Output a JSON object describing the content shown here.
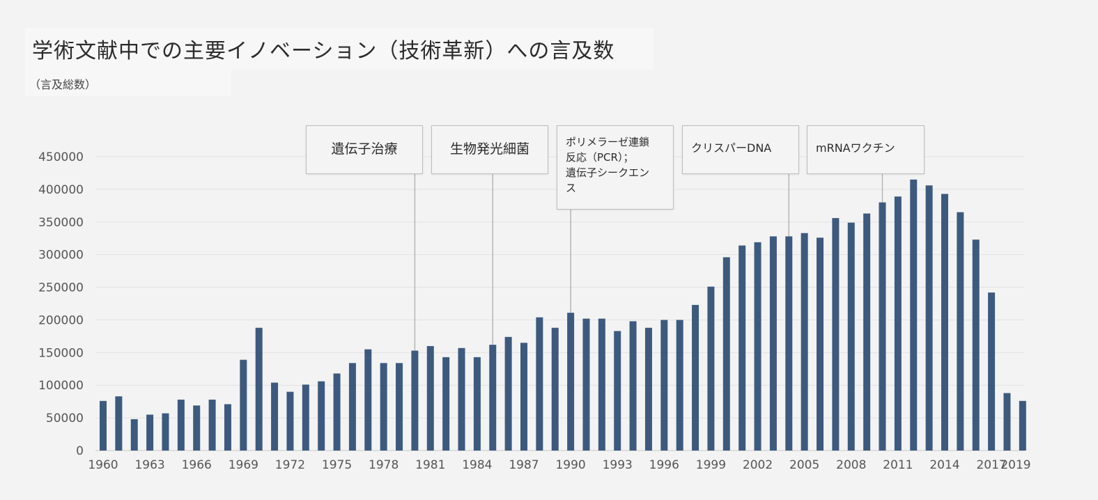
{
  "title": "学術文献中での主要イノベーション（技術革新）への言及数",
  "subtitle": "（言及総数）",
  "chart_data": {
    "type": "bar",
    "title": "学術文献中での主要イノベーション（技術革新）への言及数",
    "ylabel": "（言及総数）",
    "xlabel": "",
    "ylim": [
      0,
      450000
    ],
    "yticks": [
      "0",
      "50000",
      "100000",
      "150000",
      "200000",
      "250000",
      "300000",
      "350000",
      "400000",
      "450000"
    ],
    "xtick_labels": [
      "1960",
      "1963",
      "1966",
      "1969",
      "1972",
      "1975",
      "1978",
      "1981",
      "1984",
      "1987",
      "1990",
      "1993",
      "1996",
      "1999",
      "2002",
      "2005",
      "2008",
      "2011",
      "2014",
      "2017",
      "2019"
    ],
    "grid": true,
    "bar_color": "#3d5a7e",
    "categories": [
      1960,
      1961,
      1962,
      1963,
      1964,
      1965,
      1966,
      1967,
      1968,
      1969,
      1970,
      1971,
      1972,
      1973,
      1974,
      1975,
      1976,
      1977,
      1978,
      1979,
      1980,
      1981,
      1982,
      1983,
      1984,
      1985,
      1986,
      1987,
      1988,
      1989,
      1990,
      1991,
      1992,
      1993,
      1994,
      1995,
      1996,
      1997,
      1998,
      1999,
      2000,
      2001,
      2002,
      2003,
      2004,
      2005,
      2006,
      2007,
      2008,
      2009,
      2010,
      2011,
      2012,
      2013,
      2014,
      2015,
      2016,
      2017,
      2018,
      2019
    ],
    "values": [
      76000,
      83000,
      48000,
      55000,
      57000,
      78000,
      69000,
      78000,
      71000,
      139000,
      188000,
      104000,
      90000,
      101000,
      106000,
      118000,
      134000,
      155000,
      134000,
      134000,
      153000,
      160000,
      143000,
      157000,
      143000,
      162000,
      174000,
      165000,
      204000,
      188000,
      211000,
      202000,
      202000,
      183000,
      198000,
      188000,
      200000,
      200000,
      223000,
      251000,
      296000,
      314000,
      319000,
      328000,
      328000,
      333000,
      326000,
      356000,
      349000,
      363000,
      380000,
      389000,
      415000,
      406000,
      393000,
      365000,
      323000,
      242000,
      88000,
      76000
    ],
    "annotations": [
      {
        "label": "遺伝子治療",
        "year": 1980
      },
      {
        "label": "生物発光細菌",
        "year": 1985
      },
      {
        "label": "ポリメラーゼ連鎖\n反応（PCR）；\n 遺伝子シークエン\nス",
        "year": 1990
      },
      {
        "label": "クリスパーDNA",
        "year": 2004
      },
      {
        "label": "mRNAワクチン",
        "year": 2010
      }
    ]
  }
}
